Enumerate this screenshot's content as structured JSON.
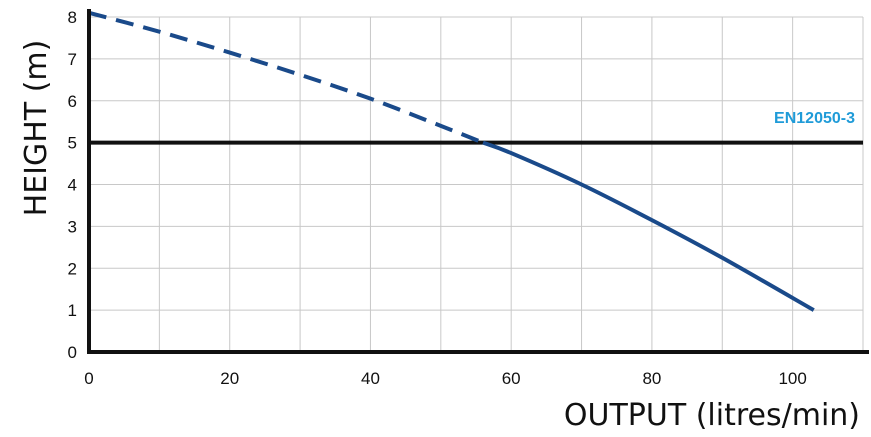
{
  "chart_data": {
    "type": "line",
    "xlabel": "OUTPUT (litres/min)",
    "ylabel": "HEIGHT (m)",
    "xlim": [
      0,
      110
    ],
    "ylim": [
      0,
      8
    ],
    "x_ticks": [
      0,
      10,
      20,
      30,
      40,
      50,
      60,
      70,
      80,
      90,
      100,
      110
    ],
    "x_tick_labels": [
      "0",
      "",
      "20",
      "",
      "40",
      "",
      "60",
      "",
      "80",
      "",
      "100",
      ""
    ],
    "y_ticks": [
      0,
      1,
      2,
      3,
      4,
      5,
      6,
      7,
      8
    ],
    "y_tick_labels": [
      "0",
      "1",
      "2",
      "3",
      "4",
      "5",
      "6",
      "7",
      "8"
    ],
    "grid": true,
    "series": [
      {
        "style": "dashed",
        "color": "#1a4a8a",
        "x": [
          0,
          10,
          20,
          30,
          40,
          50,
          56
        ],
        "y": [
          8.1,
          7.65,
          7.15,
          6.62,
          6.05,
          5.4,
          5.0
        ]
      },
      {
        "style": "solid",
        "color": "#1a4a8a",
        "x": [
          56,
          60,
          70,
          80,
          90,
          103
        ],
        "y": [
          5.0,
          4.75,
          4.0,
          3.15,
          2.25,
          1.0
        ]
      }
    ],
    "reference_line": {
      "y": 5,
      "label": "EN12050-3",
      "color": "#111111",
      "label_color": "#1f9bd8"
    }
  }
}
